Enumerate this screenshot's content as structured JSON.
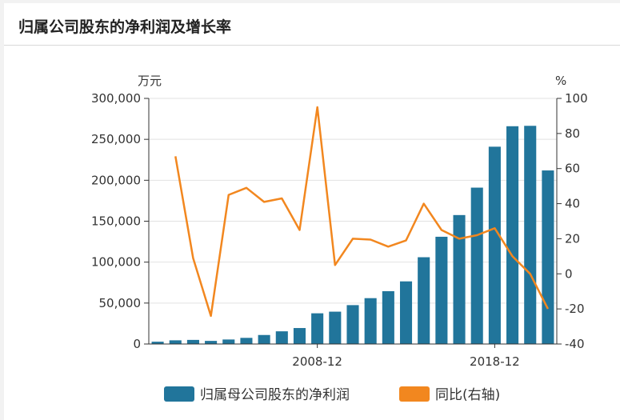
{
  "panel": {
    "title": "归属公司股东的净利润及增长率"
  },
  "chart_data": {
    "type": "bar+line",
    "y_left_unit": "万元",
    "y_right_unit": "%",
    "y_left_range": [
      0,
      300000
    ],
    "y_left_ticks": [
      "0",
      "50,000",
      "100,000",
      "150,000",
      "200,000",
      "250,000",
      "300,000"
    ],
    "y_right_range": [
      -40,
      100
    ],
    "y_right_ticks": [
      "-40",
      "-20",
      "0",
      "20",
      "40",
      "60",
      "80",
      "100"
    ],
    "x_tick_labels": [
      {
        "label": "2008-12",
        "index": 9
      },
      {
        "label": "2018-12",
        "index": 19
      }
    ],
    "grid": true,
    "legend_position": "bottom",
    "series": [
      {
        "name": "归属母公司股东的净利润",
        "type": "bar",
        "axis": "left",
        "color": "#21759b",
        "values": [
          2800,
          4500,
          5000,
          3800,
          5500,
          7500,
          11000,
          15500,
          19500,
          37500,
          39500,
          47500,
          56000,
          64500,
          76500,
          106000,
          131000,
          157500,
          191000,
          241000,
          266000,
          266500,
          212000
        ]
      },
      {
        "name": "同比(右轴)",
        "type": "line",
        "axis": "right",
        "color": "#f2871f",
        "values": [
          null,
          67,
          9,
          -24,
          45,
          49,
          41,
          43,
          25,
          95,
          5,
          20,
          19.5,
          15.5,
          19,
          40,
          25,
          20,
          22,
          26,
          10,
          0,
          -20
        ]
      }
    ]
  }
}
